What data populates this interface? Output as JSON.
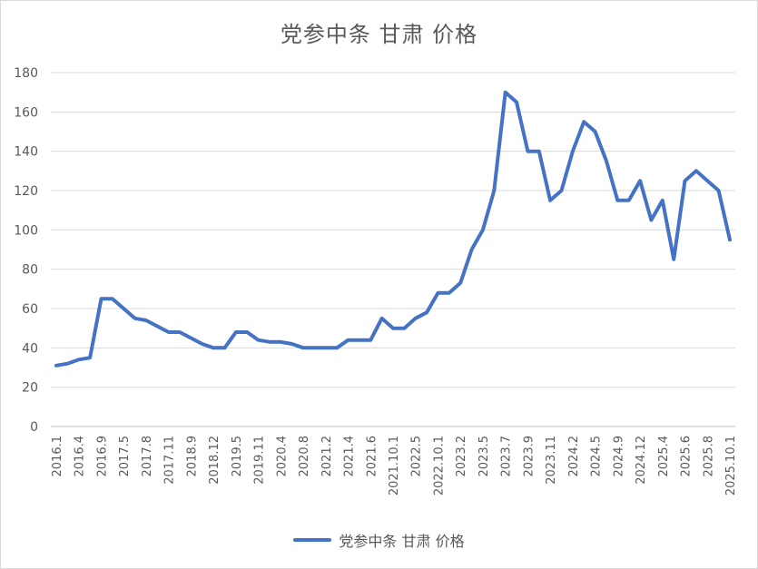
{
  "chart_data": {
    "type": "line",
    "title": "党参中条 甘肃 价格",
    "xlabel": "",
    "ylabel": "",
    "ylim": [
      0,
      180
    ],
    "yticks": [
      0,
      20,
      40,
      60,
      80,
      100,
      120,
      140,
      160,
      180
    ],
    "grid": true,
    "legend_position": "bottom",
    "x_tick_labels": [
      "2016.1",
      "2016.4",
      "2016.9",
      "2017.5",
      "2017.8",
      "2017.11",
      "2018.9",
      "2018.12",
      "2019.5",
      "2019.11",
      "2020.4",
      "2020.8",
      "2021.2",
      "2021.4",
      "2021.6",
      "2021.10.1",
      "2022.5",
      "2022.10.1",
      "2023.2",
      "2023.5",
      "2023.7",
      "2023.9",
      "2023.11",
      "2024.2",
      "2024.5",
      "2024.9",
      "2024.12",
      "2025.4",
      "2025.6",
      "2025.8",
      "2025.10.1"
    ],
    "series": [
      {
        "name": "党参中条 甘肃 价格",
        "color": "#4472c4",
        "values": [
          31,
          32,
          34,
          35,
          65,
          65,
          60,
          55,
          54,
          51,
          48,
          48,
          45,
          42,
          40,
          40,
          48,
          48,
          44,
          43,
          43,
          42,
          40,
          40,
          40,
          40,
          44,
          44,
          44,
          55,
          50,
          50,
          55,
          58,
          68,
          68,
          73,
          90,
          100,
          120,
          170,
          165,
          140,
          140,
          115,
          120,
          140,
          155,
          150,
          135,
          115,
          115,
          125,
          105,
          115,
          85,
          125,
          130,
          125,
          120,
          95
        ]
      }
    ]
  }
}
